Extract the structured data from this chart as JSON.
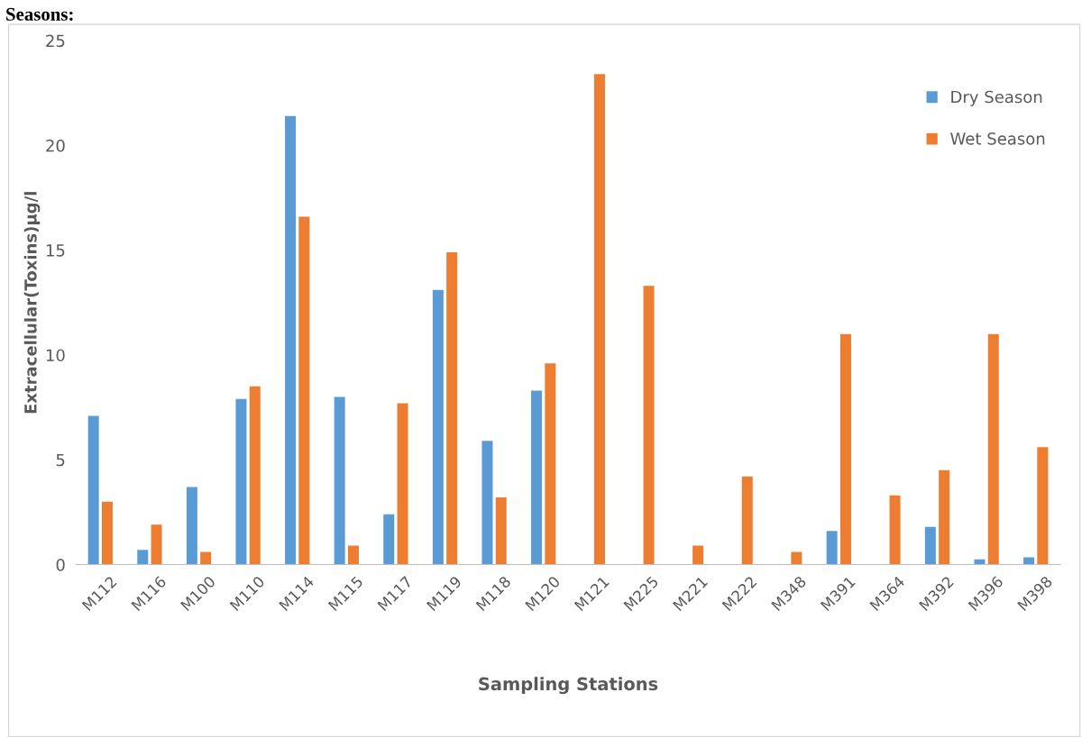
{
  "chart_data": {
    "type": "bar",
    "title": "Seasons:",
    "xlabel": "Sampling Stations",
    "ylabel": "Extracellular(Toxins)µg/l",
    "categories": [
      "M112",
      "M116",
      "M100",
      "M110",
      "M114",
      "M115",
      "M117",
      "M119",
      "M118",
      "M120",
      "M121",
      "M225",
      "M221",
      "M222",
      "M348",
      "M391",
      "M364",
      "M392",
      "M396",
      "M398"
    ],
    "series": [
      {
        "name": "Dry Season",
        "color": "#5b9bd5",
        "values": [
          7.1,
          0.7,
          3.7,
          7.9,
          21.4,
          8.0,
          2.4,
          13.1,
          5.9,
          8.3,
          0,
          0,
          0,
          0,
          0,
          1.6,
          0,
          1.8,
          0.25,
          0.35
        ]
      },
      {
        "name": "Wet Season",
        "color": "#ed7d31",
        "values": [
          3.0,
          1.9,
          0.6,
          8.5,
          16.6,
          0.9,
          7.7,
          14.9,
          3.2,
          9.6,
          23.4,
          13.3,
          0.9,
          4.2,
          0.6,
          11.0,
          3.3,
          4.5,
          11.0,
          5.6
        ]
      }
    ],
    "ylim": [
      0,
      25
    ],
    "yticks": [
      0,
      5,
      10,
      15,
      20,
      25
    ],
    "grid": false,
    "legend": "right"
  }
}
